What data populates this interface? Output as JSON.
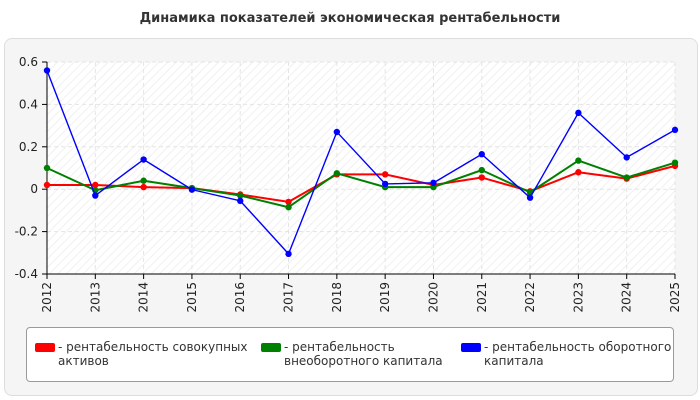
{
  "title": "Динамика показателей экономическая рентабельности",
  "chart_data": {
    "type": "line",
    "x": [
      "2012",
      "2013",
      "2014",
      "2015",
      "2016",
      "2017",
      "2018",
      "2019",
      "2020",
      "2021",
      "2022",
      "2023",
      "2024",
      "2025"
    ],
    "ylim": [
      -0.4,
      0.6
    ],
    "yticks": [
      "0.6",
      "0.4",
      "0.2",
      "0",
      "-0.2",
      "-0.4"
    ],
    "ytick_values": [
      0.6,
      0.4,
      0.2,
      0,
      -0.2,
      -0.4
    ],
    "grid": true,
    "legend_position": "bottom",
    "series": [
      {
        "name": "- рентабельность совокупных активов",
        "color": "#ff0000",
        "values": [
          0.02,
          0.02,
          0.01,
          0.005,
          -0.025,
          -0.06,
          0.07,
          0.07,
          0.02,
          0.055,
          -0.01,
          0.08,
          0.05,
          0.11
        ]
      },
      {
        "name": "- рентабельность внеоборотного капитала",
        "color": "#008000",
        "values": [
          0.1,
          -0.005,
          0.04,
          0.005,
          -0.03,
          -0.085,
          0.075,
          0.01,
          0.01,
          0.09,
          -0.015,
          0.135,
          0.055,
          0.125
        ]
      },
      {
        "name": "- рентабельность оборотного капитала",
        "color": "#0000ff",
        "values": [
          0.56,
          -0.03,
          0.14,
          -0.002,
          -0.055,
          -0.305,
          0.27,
          0.025,
          0.03,
          0.165,
          -0.04,
          0.36,
          0.15,
          0.28
        ]
      }
    ]
  },
  "legend": {
    "items": [
      {
        "line1": "- рентабельность совокупных",
        "line2": "активов",
        "color": "#ff0000"
      },
      {
        "line1": "- рентабельность",
        "line2": "внеоборотного капитала",
        "color": "#008000"
      },
      {
        "line1": "- рентабельность оборотного",
        "line2": "капитала",
        "color": "#0000ff"
      }
    ]
  }
}
